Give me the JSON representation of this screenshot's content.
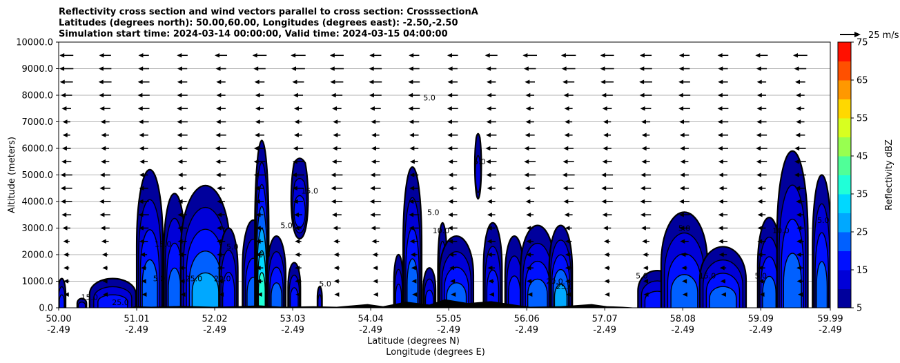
{
  "chart_data": {
    "type": "contour",
    "title_lines": [
      "Reflectivity cross section and wind vectors parallel to cross section: CrosssectionA",
      "Latitudes (degrees north): 50.00,60.00, Longitudes (degrees east): -2.50,-2.50",
      "Simulation start time: 2024-03-14 00:00:00, Valid time: 2024-03-15 04:00:00"
    ],
    "xlabel_line1": "Latitude (degrees N)",
    "xlabel_line2": "Longitude (degrees E)",
    "ylabel": "Altitude (meters)",
    "xlim": [
      50.0,
      59.99
    ],
    "ylim": [
      0,
      10000
    ],
    "grid": "horizontal",
    "x_ticks": [
      {
        "lat": "50.00",
        "lon": "-2.49",
        "value": 50.0
      },
      {
        "lat": "51.01",
        "lon": "-2.49",
        "value": 51.01
      },
      {
        "lat": "52.02",
        "lon": "-2.49",
        "value": 52.02
      },
      {
        "lat": "53.03",
        "lon": "-2.49",
        "value": 53.03
      },
      {
        "lat": "54.04",
        "lon": "-2.49",
        "value": 54.04
      },
      {
        "lat": "55.05",
        "lon": "-2.49",
        "value": 55.05
      },
      {
        "lat": "56.06",
        "lon": "-2.49",
        "value": 56.06
      },
      {
        "lat": "57.07",
        "lon": "-2.49",
        "value": 57.07
      },
      {
        "lat": "58.08",
        "lon": "-2.49",
        "value": 58.08
      },
      {
        "lat": "59.09",
        "lon": "-2.49",
        "value": 59.09
      },
      {
        "lat": "59.99",
        "lon": "-2.49",
        "value": 59.99
      }
    ],
    "y_ticks": [
      "0.0",
      "1000.0",
      "2000.0",
      "3000.0",
      "4000.0",
      "5000.0",
      "6000.0",
      "7000.0",
      "8000.0",
      "9000.0",
      "10000.0"
    ],
    "y_tick_values": [
      0,
      1000,
      2000,
      3000,
      4000,
      5000,
      6000,
      7000,
      8000,
      9000,
      10000
    ],
    "colorbar": {
      "label": "Reflectivity dBZ",
      "levels": [
        5,
        10,
        15,
        20,
        25,
        30,
        35,
        40,
        45,
        50,
        55,
        60,
        65,
        70,
        75
      ],
      "tick_labels": [
        "5",
        "15",
        "25",
        "35",
        "45",
        "55",
        "65",
        "75"
      ],
      "tick_values": [
        5,
        15,
        25,
        35,
        45,
        55,
        65,
        75
      ],
      "colors": [
        "#00009c",
        "#0000d8",
        "#0010ff",
        "#0060ff",
        "#00a8ff",
        "#00d8ff",
        "#20ffd8",
        "#50ff98",
        "#98ff50",
        "#d8ff20",
        "#ffd800",
        "#ff9800",
        "#ff5000",
        "#ff1000",
        "#a80000"
      ]
    },
    "wind_key": {
      "label": "25 m/s",
      "speed": 25
    },
    "wind_speed_by_altitude": [
      {
        "alt": 500,
        "u": -6
      },
      {
        "alt": 1000,
        "u": -8
      },
      {
        "alt": 1500,
        "u": -9
      },
      {
        "alt": 2000,
        "u": -10
      },
      {
        "alt": 2500,
        "u": -11
      },
      {
        "alt": 3000,
        "u": -12
      },
      {
        "alt": 3500,
        "u": -13
      },
      {
        "alt": 4000,
        "u": -14
      },
      {
        "alt": 4500,
        "u": -14
      },
      {
        "alt": 5000,
        "u": -15
      },
      {
        "alt": 5500,
        "u": -14
      },
      {
        "alt": 6000,
        "u": -14
      },
      {
        "alt": 6500,
        "u": -13
      },
      {
        "alt": 7000,
        "u": -13
      },
      {
        "alt": 7500,
        "u": -14
      },
      {
        "alt": 8000,
        "u": -15
      },
      {
        "alt": 8500,
        "u": -16
      },
      {
        "alt": 9000,
        "u": -17
      },
      {
        "alt": 9500,
        "u": -18
      }
    ],
    "cells": [
      {
        "x": 50.04,
        "half_width": 0.05,
        "top": 1100,
        "max_dbz": 20
      },
      {
        "x": 50.3,
        "half_width": 0.06,
        "top": 350,
        "max_dbz": 12
      },
      {
        "x": 50.7,
        "half_width": 0.3,
        "top": 1100,
        "max_dbz": 20
      },
      {
        "x": 51.18,
        "half_width": 0.17,
        "top": 5200,
        "max_dbz": 23
      },
      {
        "x": 51.5,
        "half_width": 0.14,
        "top": 4300,
        "max_dbz": 22
      },
      {
        "x": 51.9,
        "half_width": 0.32,
        "top": 4600,
        "max_dbz": 26
      },
      {
        "x": 52.2,
        "half_width": 0.12,
        "top": 3000,
        "max_dbz": 20
      },
      {
        "x": 52.52,
        "half_width": 0.14,
        "top": 3300,
        "max_dbz": 22
      },
      {
        "x": 52.63,
        "half_width": 0.09,
        "top": 6300,
        "max_dbz": 36
      },
      {
        "x": 52.82,
        "half_width": 0.12,
        "top": 2700,
        "max_dbz": 25
      },
      {
        "x": 53.05,
        "half_width": 0.08,
        "top": 1700,
        "max_dbz": 20
      },
      {
        "x": 53.12,
        "half_width": 0.12,
        "top": 5700,
        "bottom": 2600,
        "max_dbz": 18
      },
      {
        "x": 53.38,
        "half_width": 0.03,
        "top": 800,
        "max_dbz": 12
      },
      {
        "x": 54.4,
        "half_width": 0.06,
        "top": 2000,
        "max_dbz": 18
      },
      {
        "x": 54.58,
        "half_width": 0.12,
        "top": 5300,
        "max_dbz": 24
      },
      {
        "x": 54.8,
        "half_width": 0.08,
        "top": 1500,
        "max_dbz": 16
      },
      {
        "x": 54.97,
        "half_width": 0.06,
        "top": 3200,
        "max_dbz": 22
      },
      {
        "x": 55.15,
        "half_width": 0.22,
        "top": 2700,
        "max_dbz": 24
      },
      {
        "x": 55.43,
        "half_width": 0.04,
        "top": 6600,
        "bottom": 4100,
        "max_dbz": 14
      },
      {
        "x": 55.62,
        "half_width": 0.12,
        "top": 3200,
        "max_dbz": 20
      },
      {
        "x": 55.9,
        "half_width": 0.12,
        "top": 2700,
        "max_dbz": 18
      },
      {
        "x": 56.2,
        "half_width": 0.22,
        "top": 3100,
        "max_dbz": 22
      },
      {
        "x": 56.5,
        "half_width": 0.15,
        "top": 3100,
        "max_dbz": 26
      },
      {
        "x": 57.75,
        "half_width": 0.25,
        "top": 1400,
        "max_dbz": 18
      },
      {
        "x": 58.1,
        "half_width": 0.3,
        "top": 3600,
        "max_dbz": 22
      },
      {
        "x": 58.6,
        "half_width": 0.3,
        "top": 2300,
        "max_dbz": 24
      },
      {
        "x": 59.2,
        "half_width": 0.15,
        "top": 3400,
        "max_dbz": 22
      },
      {
        "x": 59.5,
        "half_width": 0.2,
        "top": 5900,
        "max_dbz": 24
      },
      {
        "x": 59.88,
        "half_width": 0.12,
        "top": 5000,
        "max_dbz": 22
      }
    ],
    "contour_labels": [
      {
        "text": "15.0",
        "x": 50.4,
        "alt": 300
      },
      {
        "text": "25.0",
        "x": 50.8,
        "alt": 100
      },
      {
        "text": "5.0",
        "x": 51.3,
        "alt": 1000
      },
      {
        "text": "15.0",
        "x": 51.35,
        "alt": 2300
      },
      {
        "text": "25.0",
        "x": 51.75,
        "alt": 1000
      },
      {
        "text": "20.0",
        "x": 52.12,
        "alt": 1000
      },
      {
        "text": "5.0",
        "x": 52.25,
        "alt": 2200
      },
      {
        "text": "30.0",
        "x": 52.63,
        "alt": 1900
      },
      {
        "text": "5.0",
        "x": 52.95,
        "alt": 3000
      },
      {
        "text": "15.0",
        "x": 53.25,
        "alt": 4300
      },
      {
        "text": "5.0",
        "x": 53.45,
        "alt": 800
      },
      {
        "text": "5.0",
        "x": 54.8,
        "alt": 7800
      },
      {
        "text": "5.0",
        "x": 54.85,
        "alt": 3500
      },
      {
        "text": "10.0",
        "x": 54.95,
        "alt": 2800
      },
      {
        "text": "5.0",
        "x": 55.45,
        "alt": 5400
      },
      {
        "text": "20.0",
        "x": 56.42,
        "alt": 900
      },
      {
        "text": "25.0",
        "x": 56.55,
        "alt": 700
      },
      {
        "text": "5.0",
        "x": 57.55,
        "alt": 1100
      },
      {
        "text": "5.0",
        "x": 58.1,
        "alt": 2900
      },
      {
        "text": "15.0",
        "x": 58.4,
        "alt": 1100
      },
      {
        "text": "5.0",
        "x": 59.09,
        "alt": 1100
      },
      {
        "text": "10.0",
        "x": 59.35,
        "alt": 2800
      },
      {
        "text": "5.0",
        "x": 59.9,
        "alt": 3200
      }
    ]
  }
}
